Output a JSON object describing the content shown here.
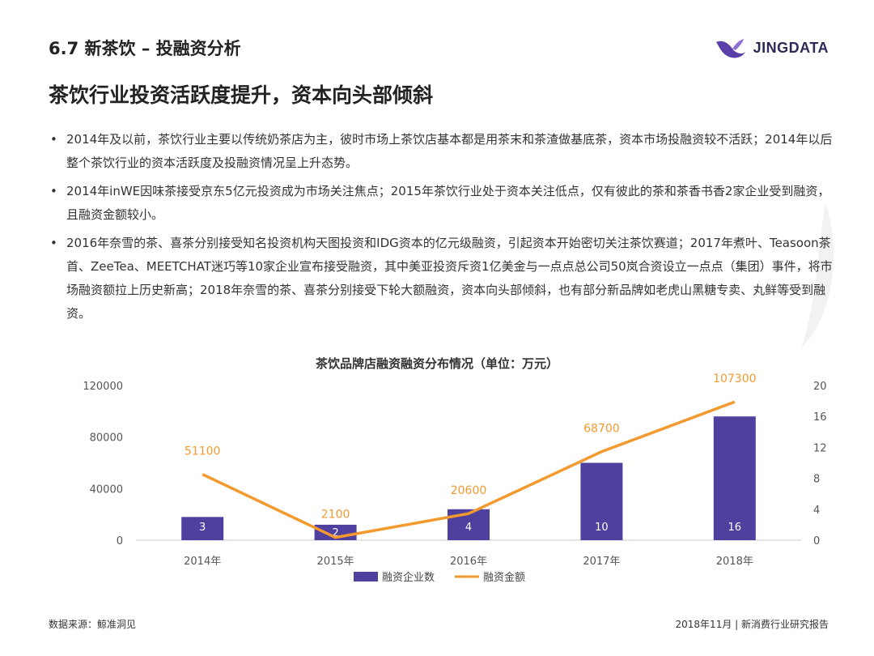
{
  "header": {
    "section_title": "6.7 新茶饮 – 投融资分析",
    "brand_name": "JINGDATA"
  },
  "headline": "茶饮行业投资活跃度提升，资本向头部倾斜",
  "bullets": [
    "2014年及以前，茶饮行业主要以传统奶茶店为主，彼时市场上茶饮店基本都是用茶末和茶渣做基底茶，资本市场投融资较不活跃；2014年以后整个茶饮行业的资本活跃度及投融资情况呈上升态势。",
    "2014年inWE因味茶接受京东5亿元投资成为市场关注焦点；2015年茶饮行业处于资本关注低点，仅有彼此的茶和茶香书香2家企业受到融资，且融资金额较小。",
    "2016年奈雪的茶、喜茶分别接受知名投资机构天图投资和IDG资本的亿元级融资，引起资本开始密切关注茶饮赛道；2017年煮叶、Teasoon茶首、ZeeTea、MEETCHAT迷巧等10家企业宣布接受融资，其中美亚投资斥资1亿美金与一点点总公司50岚合资设立一点点（集团）事件，将市场融资额拉上历史新高；2018年奈雪的茶、喜茶分别接受下轮大额融资，资本向头部倾斜，也有部分新品牌如老虎山黑糖专卖、丸鲜等受到融资。"
  ],
  "bullet_marker": "•",
  "footer": {
    "source": "数据来源：鲸准洞见",
    "report": "2018年11月 | 新消费行业研究报告"
  },
  "colors": {
    "bar": "#4f3f9e",
    "line": "#f39a2e",
    "axis": "#cccccc",
    "brand": "#2c2a57"
  },
  "chart_data": {
    "type": "bar+line",
    "title": "茶饮品牌店融资融资分布情况（单位：万元）",
    "categories": [
      "2014年",
      "2015年",
      "2016年",
      "2017年",
      "2018年"
    ],
    "series": [
      {
        "name": "融资企业数",
        "type": "bar",
        "axis": "right",
        "values": [
          3,
          2,
          4,
          10,
          16
        ]
      },
      {
        "name": "融资金额",
        "type": "line",
        "axis": "left",
        "values": [
          51100,
          2100,
          20600,
          68700,
          107300
        ]
      }
    ],
    "y_left": {
      "min": 0,
      "max": 120000,
      "ticks": [
        0,
        40000,
        80000,
        120000
      ]
    },
    "y_right": {
      "min": 0,
      "max": 20,
      "ticks": [
        0,
        4,
        8,
        12,
        16,
        20
      ]
    },
    "legend": "bottom-center",
    "grid": false
  }
}
